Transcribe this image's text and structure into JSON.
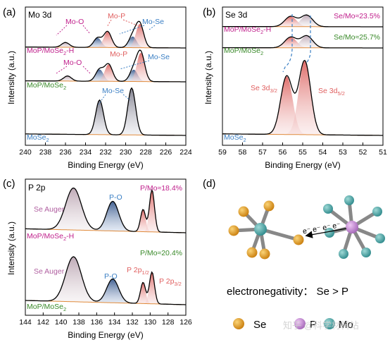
{
  "colors": {
    "magenta": "#c0208c",
    "green": "#3a8a2a",
    "blue": "#3a7fc4",
    "red": "#e06060",
    "cyan": "#3f8fd0",
    "se_atom": "#e8a020",
    "p_atom": "#c98fd8",
    "mo_atom": "#4aa8a8"
  },
  "panels": {
    "a": {
      "letter": "(a)",
      "element_label": "Mo 3d",
      "xlabel": "Binding Energy (eV)",
      "ylabel": "Intensity (a.u.)",
      "xticks": [
        "240",
        "238",
        "236",
        "234",
        "232",
        "230",
        "228",
        "226",
        "224"
      ],
      "samples": [
        "MoP/MoSe2-H",
        "MoP/MoSe2",
        "MoSe2"
      ],
      "annotations": [
        "Mo-O",
        "Mo-P",
        "Mo-Se",
        "Mo-O",
        "Mo-P",
        "Mo-Se",
        "Mo-Se"
      ]
    },
    "b": {
      "letter": "(b)",
      "element_label": "Se 3d",
      "xlabel": "Binding Energy (eV)",
      "ylabel": "Intensity (a.u.)",
      "xticks": [
        "59",
        "58",
        "57",
        "56",
        "55",
        "54",
        "53",
        "52",
        "51"
      ],
      "samples": [
        "MoP/MoSe2-H",
        "MoP/MoSe2",
        "MoSe2"
      ],
      "ratios": [
        "Se/Mo≈23.5%",
        "Se/Mo≈25.7%"
      ],
      "annotations": [
        "Se 3d3/2",
        "Se 3d5/2"
      ]
    },
    "c": {
      "letter": "(c)",
      "element_label": "P 2p",
      "xlabel": "Binding Energy (eV)",
      "ylabel": "Intensity (a.u.)",
      "xticks": [
        "144",
        "142",
        "140",
        "138",
        "136",
        "134",
        "132",
        "130",
        "128",
        "126"
      ],
      "samples": [
        "MoP/MoSe2-H",
        "MoP/MoSe2"
      ],
      "ratios": [
        "P/Mo≈18.4%",
        "P/Mo≈20.4%"
      ],
      "annotations": [
        "Se Auger",
        "P-O",
        "Se Auger",
        "P-O",
        "P 2p1/2",
        "P 2p3/2"
      ]
    },
    "d": {
      "letter": "(d)",
      "electron_label": "e⁻ e⁻ e⁻ e⁻",
      "electronegativity": "electronegativity： Se > P",
      "legend": [
        "Se",
        "P",
        "Mo"
      ],
      "watermark": "知乎 @科学材料站"
    }
  },
  "chart_data": [
    {
      "type": "line",
      "panel": "a",
      "title": "Mo 3d",
      "xlabel": "Binding Energy (eV)",
      "ylabel": "Intensity (a.u.)",
      "xlim": [
        240,
        224
      ],
      "x_reversed": true,
      "series": [
        {
          "name": "MoP/MoSe2-H",
          "peaks": [
            [
              236.0,
              0.15
            ],
            [
              232.8,
              0.3
            ],
            [
              231.8,
              0.5
            ],
            [
              229.3,
              0.35
            ],
            [
              228.6,
              0.75
            ]
          ]
        },
        {
          "name": "MoP/MoSe2",
          "peaks": [
            [
              235.8,
              0.15
            ],
            [
              232.6,
              0.35
            ],
            [
              231.7,
              0.5
            ],
            [
              229.2,
              0.35
            ],
            [
              228.5,
              0.85
            ]
          ]
        },
        {
          "name": "MoSe2",
          "peaks": [
            [
              232.6,
              0.7
            ],
            [
              229.4,
              0.95
            ]
          ]
        }
      ]
    },
    {
      "type": "line",
      "panel": "b",
      "title": "Se 3d",
      "xlabel": "Binding Energy (eV)",
      "ylabel": "Intensity (a.u.)",
      "xlim": [
        59,
        51
      ],
      "x_reversed": true,
      "series": [
        {
          "name": "MoP/MoSe2-H",
          "peaks": [
            [
              55.6,
              0.8
            ],
            [
              54.8,
              0.9
            ]
          ]
        },
        {
          "name": "MoP/MoSe2",
          "peaks": [
            [
              55.6,
              0.75
            ],
            [
              54.8,
              0.85
            ]
          ]
        },
        {
          "name": "MoSe2",
          "peaks": [
            [
              55.8,
              0.75
            ],
            [
              54.9,
              0.95
            ]
          ]
        }
      ]
    },
    {
      "type": "line",
      "panel": "c",
      "title": "P 2p",
      "xlabel": "Binding Energy (eV)",
      "ylabel": "Intensity (a.u.)",
      "xlim": [
        144,
        126
      ],
      "x_reversed": true,
      "series": [
        {
          "name": "MoP/MoSe2-H",
          "peaks": [
            [
              138.6,
              0.85
            ],
            [
              134.2,
              0.6
            ],
            [
              130.8,
              0.45
            ],
            [
              129.8,
              0.85
            ]
          ]
        },
        {
          "name": "MoP/MoSe2",
          "peaks": [
            [
              138.6,
              0.85
            ],
            [
              134.2,
              0.45
            ],
            [
              130.8,
              0.4
            ],
            [
              129.8,
              0.6
            ]
          ]
        }
      ]
    }
  ]
}
